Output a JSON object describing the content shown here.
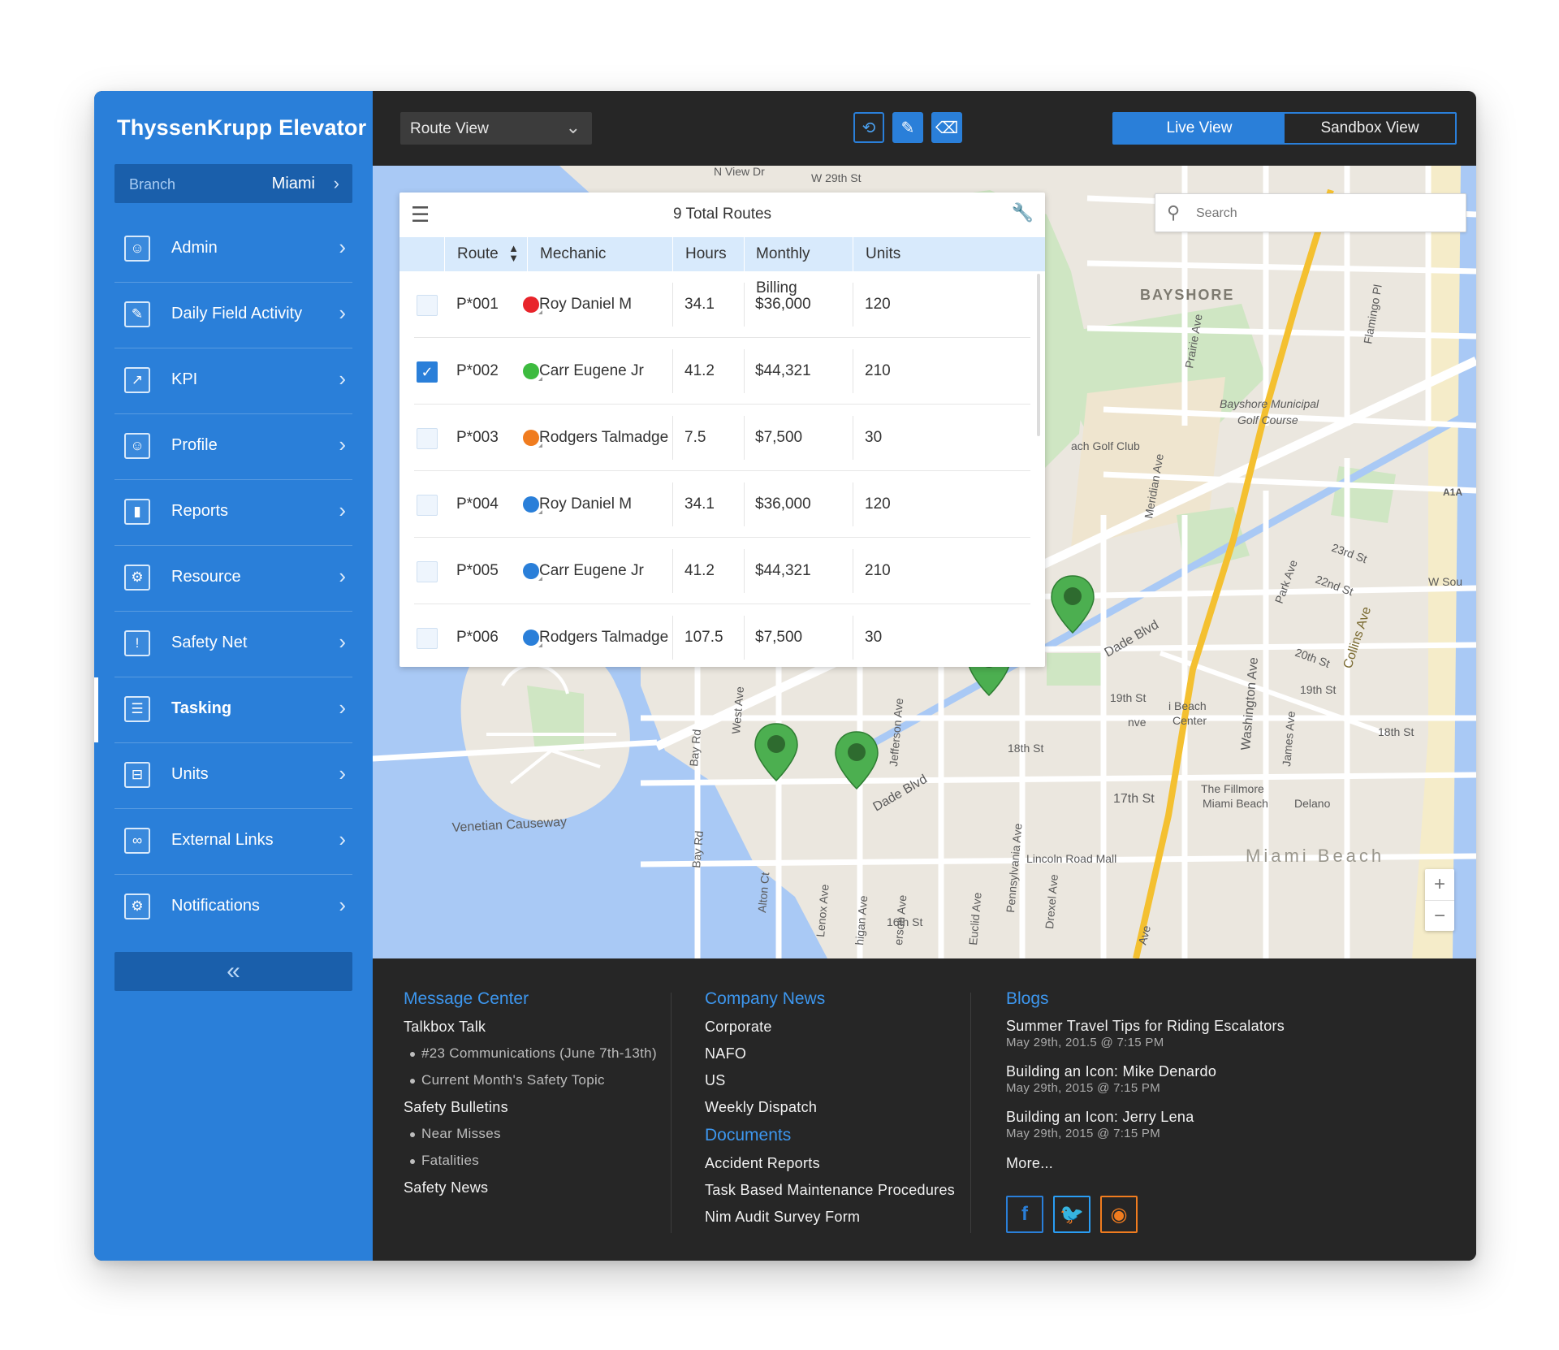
{
  "brand": "ThyssenKrupp Elevator",
  "branch": {
    "label": "Branch",
    "value": "Miami"
  },
  "nav": [
    {
      "label": "Admin",
      "icon": "admin-icon",
      "glyph": "☺"
    },
    {
      "label": "Daily Field Activity",
      "icon": "field-activity-icon",
      "glyph": "✎"
    },
    {
      "label": "KPI",
      "icon": "kpi-chart-icon",
      "glyph": "↗"
    },
    {
      "label": "Profile",
      "icon": "profile-icon",
      "glyph": "☺"
    },
    {
      "label": "Reports",
      "icon": "reports-bar-icon",
      "glyph": "▮"
    },
    {
      "label": "Resource",
      "icon": "resource-icon",
      "glyph": "⚙"
    },
    {
      "label": "Safety Net",
      "icon": "warning-icon",
      "glyph": "!"
    },
    {
      "label": "Tasking",
      "icon": "task-list-icon",
      "glyph": "☰"
    },
    {
      "label": "Units",
      "icon": "units-icon",
      "glyph": "⊟"
    },
    {
      "label": "External Links",
      "icon": "link-icon",
      "glyph": "∞"
    },
    {
      "label": "Notifications",
      "icon": "notification-icon",
      "glyph": "⚙"
    }
  ],
  "active_nav": "Tasking",
  "collapse_glyph": "«",
  "topbar": {
    "route_select": "Route View",
    "live_view": "Live View",
    "sandbox_view": "Sandbox View"
  },
  "search": {
    "placeholder": "Search"
  },
  "routes_panel": {
    "title": "9 Total Routes",
    "columns": [
      "Route",
      "Mechanic",
      "Hours",
      "Monthly Billing",
      "Units"
    ],
    "rows": [
      {
        "route": "P*001",
        "color": "#e8242b",
        "mechanic": "Roy Daniel M",
        "hours": "34.1",
        "billing": "$36,000",
        "units": "120",
        "checked": false
      },
      {
        "route": "P*002",
        "color": "#3dbb3f",
        "mechanic": "Carr Eugene Jr",
        "hours": "41.2",
        "billing": "$44,321",
        "units": "210",
        "checked": true
      },
      {
        "route": "P*003",
        "color": "#f07c1f",
        "mechanic": "Rodgers Talmadge",
        "hours": "7.5",
        "billing": "$7,500",
        "units": "30",
        "checked": false
      },
      {
        "route": "P*004",
        "color": "#2a7fd9",
        "mechanic": "Roy Daniel M",
        "hours": "34.1",
        "billing": "$36,000",
        "units": "120",
        "checked": false
      },
      {
        "route": "P*005",
        "color": "#2a7fd9",
        "mechanic": "Carr Eugene Jr",
        "hours": "41.2",
        "billing": "$44,321",
        "units": "210",
        "checked": false
      },
      {
        "route": "P*006",
        "color": "#2a7fd9",
        "mechanic": "Rodgers Talmadge",
        "hours": "107.5",
        "billing": "$7,500",
        "units": "30",
        "checked": false
      }
    ]
  },
  "map": {
    "labels": {
      "w29": "W 29th St",
      "nview": "N View Dr",
      "bayshore": "BAYSHORE",
      "golf": "Bayshore Municipal",
      "golf2": "Golf Course",
      "golfclub": "ach Golf Club",
      "prairie": "Prairie Ave",
      "meridian": "Meridian Ave",
      "flamingo": "Flamingo Pl",
      "a1a": "A1A",
      "st23": "23rd St",
      "st22": "22nd St",
      "wsou": "W Sou",
      "dade1": "Dade Blvd",
      "dade2": "Dade Blvd",
      "park": "Park Ave",
      "st20": "20th St",
      "collins": "Collins Ave",
      "st19a": "19th St",
      "st19b": "19th St",
      "beach": "i Beach",
      "center": "Center",
      "nve": "nve",
      "washington": "Washington Ave",
      "st18a": "18th St",
      "st18b": "18th St",
      "james": "James Ave",
      "fillmore": "The Fillmore",
      "fillmore2": "Miami Beach",
      "delano": "Delano",
      "st17": "17th St",
      "venetian": "Venetian Causeway",
      "lincoln": "Lincoln Road Mall",
      "miamibeach": "Miami Beach",
      "st16": "16th St",
      "bayrd": "Bay Rd",
      "bayrd2": "Bay Rd",
      "westave": "West Ave",
      "jefferson": "Jefferson Ave",
      "alton": "Alton Ct",
      "lenox": "Lenox Ave",
      "michigan": "higan Ave",
      "jefferson2": "erson Ave",
      "euclid": "Euclid Ave",
      "pennsylvania": "Pennsylvania Ave",
      "drexel": "Drexel Ave",
      "ave": "Ave"
    }
  },
  "zoom": {
    "plus": "+",
    "minus": "−"
  },
  "footer": {
    "message_center": {
      "title": "Message Center",
      "items": [
        {
          "text": "Talkbox Talk",
          "sub": false
        },
        {
          "text": "#23 Communications (June 7th-13th)",
          "sub": true
        },
        {
          "text": "Current Month's Safety Topic",
          "sub": true
        },
        {
          "text": "Safety Bulletins",
          "sub": false
        },
        {
          "text": "Near Misses",
          "sub": true
        },
        {
          "text": "Fatalities",
          "sub": true
        },
        {
          "text": "Safety News",
          "sub": false
        }
      ]
    },
    "company_news": {
      "title": "Company News",
      "items": [
        "Corporate",
        "NAFO",
        "US",
        "Weekly Dispatch"
      ]
    },
    "documents": {
      "title": "Documents",
      "items": [
        "Accident Reports",
        "Task Based Maintenance Procedures",
        "Nim Audit Survey Form"
      ]
    },
    "blogs": {
      "title": "Blogs",
      "items": [
        {
          "title": "Summer Travel Tips for Riding Escalators",
          "date": "May 29th, 201.5 @ 7:15 PM"
        },
        {
          "title": "Building an Icon: Mike Denardo",
          "date": "May 29th, 2015 @ 7:15 PM"
        },
        {
          "title": "Building an Icon: Jerry Lena",
          "date": "May 29th, 2015 @ 7:15 PM"
        }
      ],
      "more": "More..."
    },
    "social": [
      {
        "name": "facebook-icon",
        "glyph": "f",
        "color": "#2a7fd9"
      },
      {
        "name": "twitter-icon",
        "glyph": "🐦",
        "color": "#2a9df4"
      },
      {
        "name": "rss-icon",
        "glyph": "◉",
        "color": "#f07c1f"
      }
    ]
  }
}
